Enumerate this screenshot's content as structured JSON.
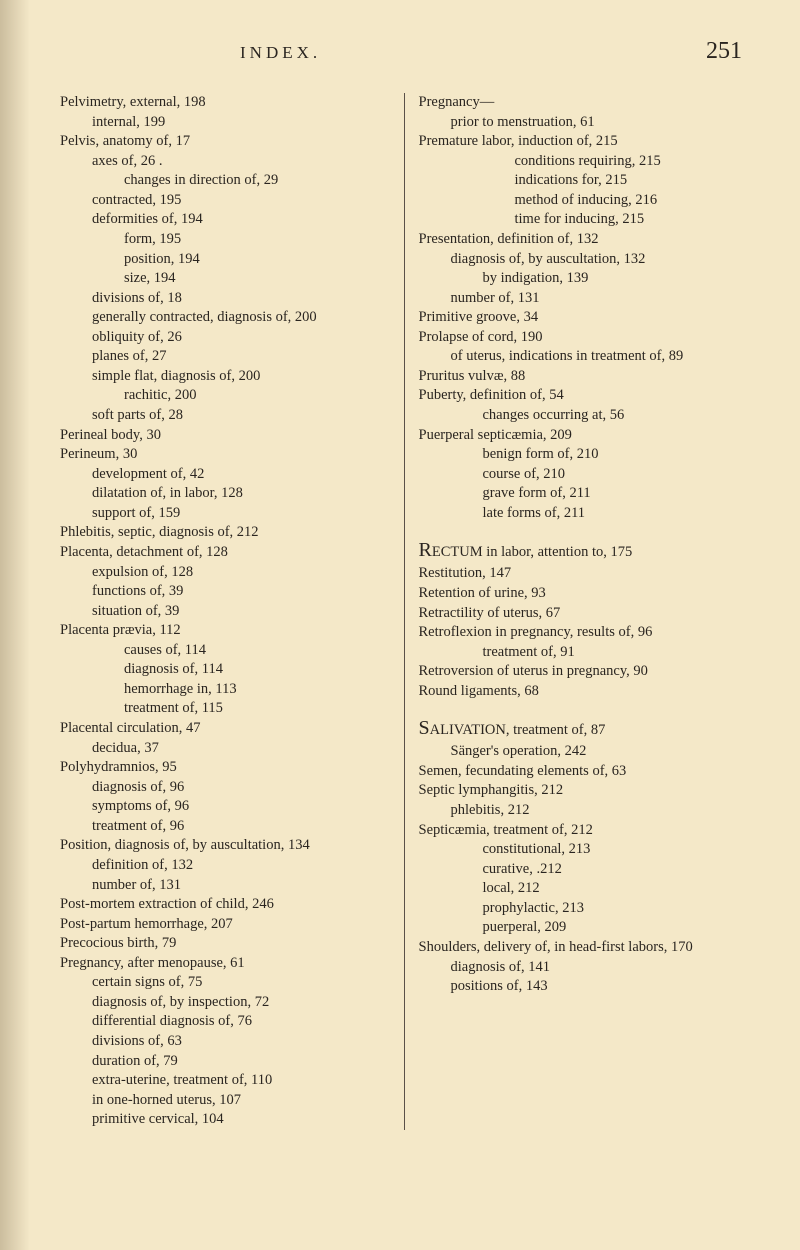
{
  "header": {
    "title": "INDEX.",
    "page_number": "251"
  },
  "left": {
    "e0": "Pelvimetry, external, 198",
    "e0a": "internal, 199",
    "e1": "Pelvis, anatomy of, 17",
    "e1a": "axes of, 26 .",
    "e1b": "changes in direction of, 29",
    "e1c": "contracted, 195",
    "e1d": "deformities of, 194",
    "e1d1": "form, 195",
    "e1d2": "position, 194",
    "e1d3": "size, 194",
    "e1e": "divisions of, 18",
    "e1f": "generally contracted, diagnosis of, 200",
    "e1g": "obliquity of, 26",
    "e1h": "planes of, 27",
    "e1i": "simple flat, diagnosis of, 200",
    "e1i1": "rachitic, 200",
    "e1j": "soft parts of, 28",
    "e2": "Perineal body, 30",
    "e3": "Perineum, 30",
    "e3a": "development of, 42",
    "e3b": "dilatation of, in labor, 128",
    "e3c": "support of, 159",
    "e4": "Phlebitis, septic, diagnosis of, 212",
    "e5": "Placenta, detachment of, 128",
    "e5a": "expulsion of, 128",
    "e5b": "functions of, 39",
    "e5c": "situation of, 39",
    "e6": "Placenta prævia, 112",
    "e6a": "causes of, 114",
    "e6b": "diagnosis of, 114",
    "e6c": "hemorrhage in, 113",
    "e6d": "treatment of, 115",
    "e7": "Placental circulation, 47",
    "e7a": "decidua, 37",
    "e8": "Polyhydramnios, 95",
    "e8a": "diagnosis of, 96",
    "e8b": "symptoms of, 96",
    "e8c": "treatment of, 96",
    "e9": "Position, diagnosis of, by auscultation, 134",
    "e9a": "definition of, 132",
    "e9b": "number of, 131",
    "e10": "Post-mortem extraction of child, 246",
    "e11": "Post-partum hemorrhage, 207",
    "e12": "Precocious birth, 79",
    "e13": "Pregnancy, after menopause, 61",
    "e13a": "certain signs of, 75",
    "e13b": "diagnosis of, by inspection, 72",
    "e13c": "differential diagnosis of, 76",
    "e13d": "divisions of, 63",
    "e13e": "duration of, 79",
    "e13f": "extra-uterine, treatment of, 110",
    "e13g": "in one-horned uterus, 107",
    "e13h": "primitive cervical, 104"
  },
  "right": {
    "e0": "Pregnancy—",
    "e0a": "prior to menstruation, 61",
    "e1": "Premature labor, induction of, 215",
    "e1a": "conditions requiring, 215",
    "e1b": "indications for, 215",
    "e1c": "method of inducing, 216",
    "e1d": "time for inducing, 215",
    "e2": "Presentation, definition of, 132",
    "e2a": "diagnosis of, by auscultation, 132",
    "e2b": "by indigation, 139",
    "e2c": "number of, 131",
    "e3": "Primitive groove, 34",
    "e4": "Prolapse of cord, 190",
    "e4a": "of uterus, indications in treatment of, 89",
    "e5": "Pruritus vulvæ, 88",
    "e6": "Puberty, definition of, 54",
    "e6a": "changes occurring at, 56",
    "e7": "Puerperal septicæmia, 209",
    "e7a": "benign form of, 210",
    "e7b": "course of, 210",
    "e7c": "grave form of, 211",
    "e7d": "late forms of, 211",
    "r_pre": "R",
    "r0": "ECTUM in labor, attention to, 175",
    "r1": "Restitution, 147",
    "r2": "Retention of urine, 93",
    "r3": "Retractility of uterus, 67",
    "r4": "Retroflexion in pregnancy, results of, 96",
    "r4a": "treatment of, 91",
    "r5": "Retroversion of uterus in pregnancy, 90",
    "r6": "Round ligaments, 68",
    "s_pre": "S",
    "s0": "ALIVATION, treatment of, 87",
    "s0a": "Sänger's operation, 242",
    "s1": "Semen, fecundating elements of, 63",
    "s2": "Septic lymphangitis, 212",
    "s2a": "phlebitis, 212",
    "s3": "Septicæmia, treatment of, 212",
    "s3a": "constitutional, 213",
    "s3b": "curative, .212",
    "s3c": "local, 212",
    "s3d": "prophylactic, 213",
    "s3e": "puerperal, 209",
    "s4": "Shoulders, delivery of, in head-first labors, 170",
    "s4a": "diagnosis of, 141",
    "s4b": "positions of, 143"
  }
}
